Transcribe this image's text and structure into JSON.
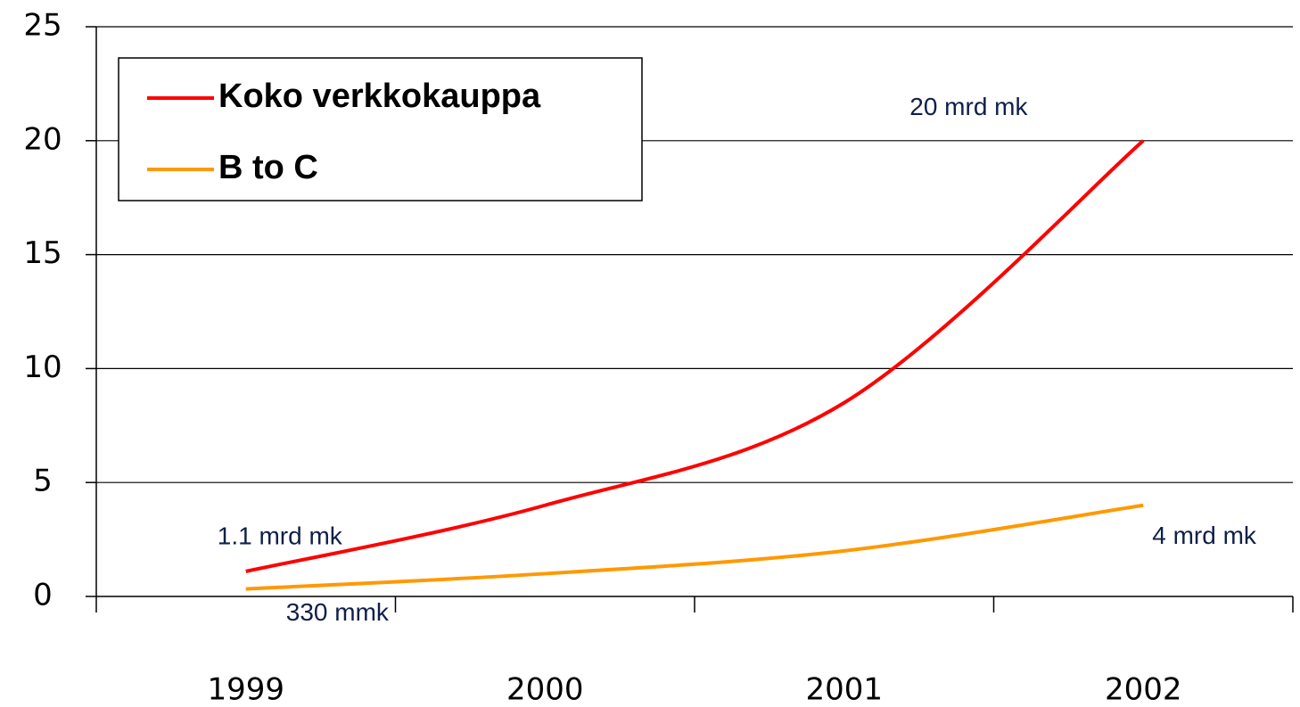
{
  "chart_data": {
    "type": "line",
    "categories": [
      "1999",
      "2000",
      "2001",
      "2002"
    ],
    "series": [
      {
        "name": "Koko verkkokauppa",
        "color": "#ff0000",
        "values": [
          1.1,
          4.0,
          8.5,
          20
        ],
        "value_labels": [
          "1.1 mrd mk",
          null,
          null,
          "20 mrd mk"
        ]
      },
      {
        "name": "B to C",
        "color": "#ff9900",
        "values": [
          0.33,
          1.0,
          2.0,
          4
        ],
        "value_labels": [
          "330 mmk",
          null,
          null,
          "4 mrd mk"
        ]
      }
    ],
    "ylim": [
      0,
      25
    ],
    "yticks": [
      0,
      5,
      10,
      15,
      20,
      25
    ],
    "grid": true,
    "legend": "upper left",
    "smooth": true
  }
}
